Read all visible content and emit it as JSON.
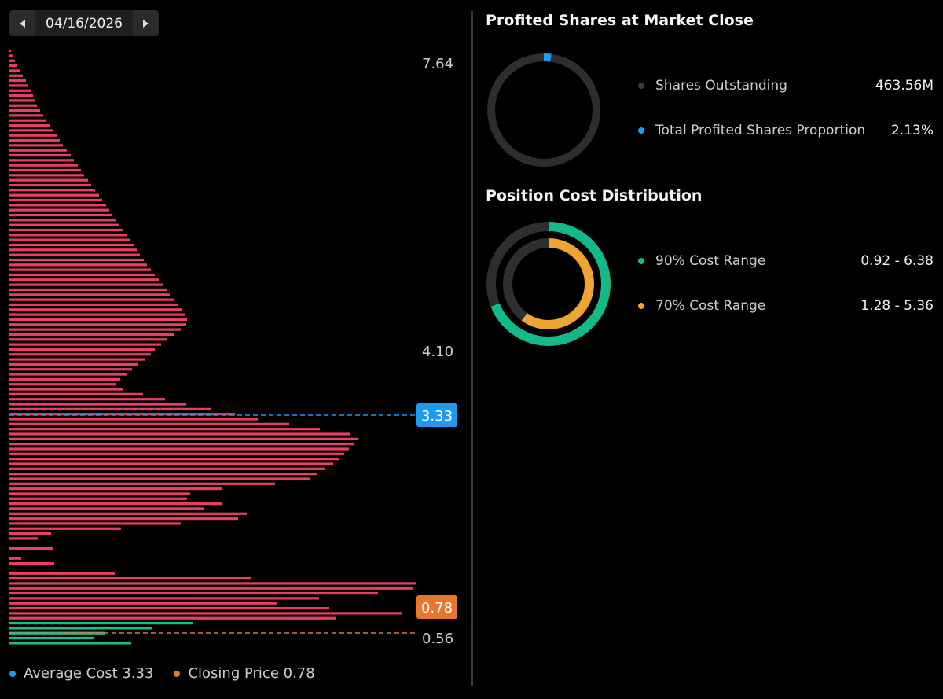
{
  "date_nav": {
    "date": "04/16/2026"
  },
  "colors": {
    "bar_profit_loss": "#ec3e62",
    "bar_profit": "#14c08d",
    "avg_cost": "#1e9bf0",
    "closing_price": "#e8772e",
    "range90": "#14b98a",
    "range70": "#efa534",
    "ring_track": "#2e2e2e",
    "shares_dot": "#3a3a3a"
  },
  "price_axis": {
    "max": "7.64",
    "mid": "4.10",
    "avg_cost_badge": "3.33",
    "closing_badge": "0.78",
    "min": "0.56"
  },
  "chart_data": {
    "type": "bar",
    "orientation": "horizontal",
    "price_range": [
      0.56,
      7.64
    ],
    "avg_cost": 3.33,
    "closing_price": 0.78,
    "values_top_to_bottom": [
      2,
      4,
      7,
      10,
      14,
      17,
      21,
      24,
      27,
      30,
      32,
      35,
      39,
      43,
      47,
      51,
      56,
      60,
      64,
      68,
      73,
      78,
      82,
      87,
      91,
      95,
      100,
      104,
      109,
      114,
      118,
      123,
      127,
      131,
      136,
      140,
      145,
      149,
      154,
      158,
      162,
      166,
      171,
      175,
      180,
      185,
      190,
      195,
      200,
      204,
      209,
      214,
      219,
      224,
      226,
      225,
      218,
      209,
      200,
      193,
      185,
      180,
      172,
      164,
      156,
      149,
      141,
      135,
      145,
      170,
      198,
      225,
      257,
      287,
      316,
      356,
      395,
      433,
      443,
      438,
      432,
      426,
      420,
      412,
      401,
      391,
      383,
      338,
      271,
      230,
      226,
      271,
      248,
      302,
      291,
      218,
      142,
      53,
      36,
      0,
      56,
      0,
      15,
      57,
      0,
      134,
      307,
      518,
      514,
      469,
      394,
      340,
      407,
      500,
      416,
      234,
      182,
      122,
      107,
      155,
      0
    ],
    "profit_rows": 5
  },
  "legend": {
    "avg_cost": "Average Cost 3.33",
    "closing_price": "Closing Price 0.78"
  },
  "profited": {
    "title": "Profited Shares at Market Close",
    "proportion_pct": 2.13,
    "rows": [
      {
        "label": "Shares Outstanding",
        "value": "463.56M"
      },
      {
        "label": "Total Profited Shares Proportion",
        "value": "2.13%"
      }
    ]
  },
  "cost_distribution": {
    "title": "Position Cost Distribution",
    "rows": [
      {
        "label": "90% Cost Range",
        "value": "0.92 - 6.38"
      },
      {
        "label": "70% Cost Range",
        "value": "1.28 - 5.36"
      }
    ],
    "ring90_fraction": 0.69,
    "ring70_fraction": 0.6
  }
}
